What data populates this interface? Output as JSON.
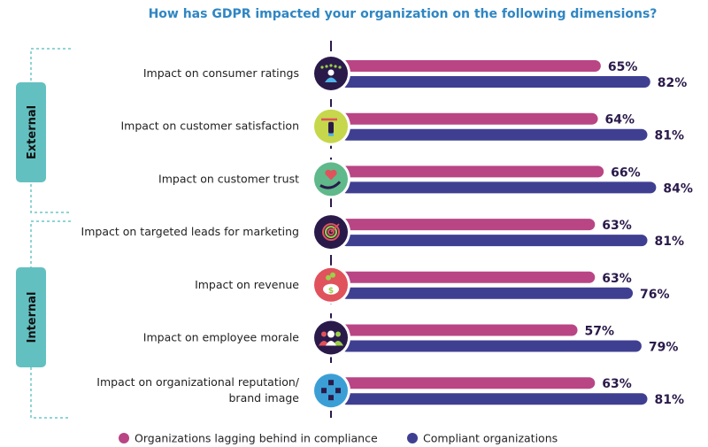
{
  "chart_data": {
    "type": "bar",
    "orientation": "horizontal",
    "title": "How has GDPR impacted your organization on the following dimensions?",
    "categories": [
      "Impact on consumer ratings",
      "Impact on customer satisfaction",
      "Impact on customer trust",
      "Impact on targeted leads for marketing",
      "Impact on revenue",
      "Impact on employee morale",
      "Impact on organizational reputation/ brand image"
    ],
    "category_lines": [
      [
        "Impact on consumer ratings"
      ],
      [
        "Impact on customer satisfaction"
      ],
      [
        "Impact on customer trust"
      ],
      [
        "Impact on targeted leads for marketing"
      ],
      [
        "Impact on revenue"
      ],
      [
        "Impact on employee morale"
      ],
      [
        "Impact on organizational reputation/",
        "brand image"
      ]
    ],
    "groups": [
      {
        "label": "External",
        "categories": [
          0,
          1,
          2
        ]
      },
      {
        "label": "Internal",
        "categories": [
          3,
          4,
          5,
          6
        ]
      }
    ],
    "icons": [
      {
        "name": "rated-person-icon",
        "color": "#2a1a4a"
      },
      {
        "name": "touch-like-icon",
        "color": "#c6d74b"
      },
      {
        "name": "heart-in-hand-icon",
        "color": "#5fb98a"
      },
      {
        "name": "target-icon",
        "color": "#2a1a4a"
      },
      {
        "name": "piggy-bank-icon",
        "color": "#e0525c"
      },
      {
        "name": "employees-icon",
        "color": "#2a1a4a"
      },
      {
        "name": "network-people-icon",
        "color": "#3b9fd6"
      }
    ],
    "series": [
      {
        "name": "Organizations lagging behind in compliance",
        "color": "#b94585",
        "values": [
          65,
          64,
          66,
          63,
          63,
          57,
          63
        ]
      },
      {
        "name": "Compliant organizations",
        "color": "#3f3f92",
        "values": [
          82,
          81,
          84,
          81,
          76,
          79,
          81
        ]
      }
    ],
    "value_suffix": "%",
    "legend_position": "bottom",
    "grid": false
  }
}
